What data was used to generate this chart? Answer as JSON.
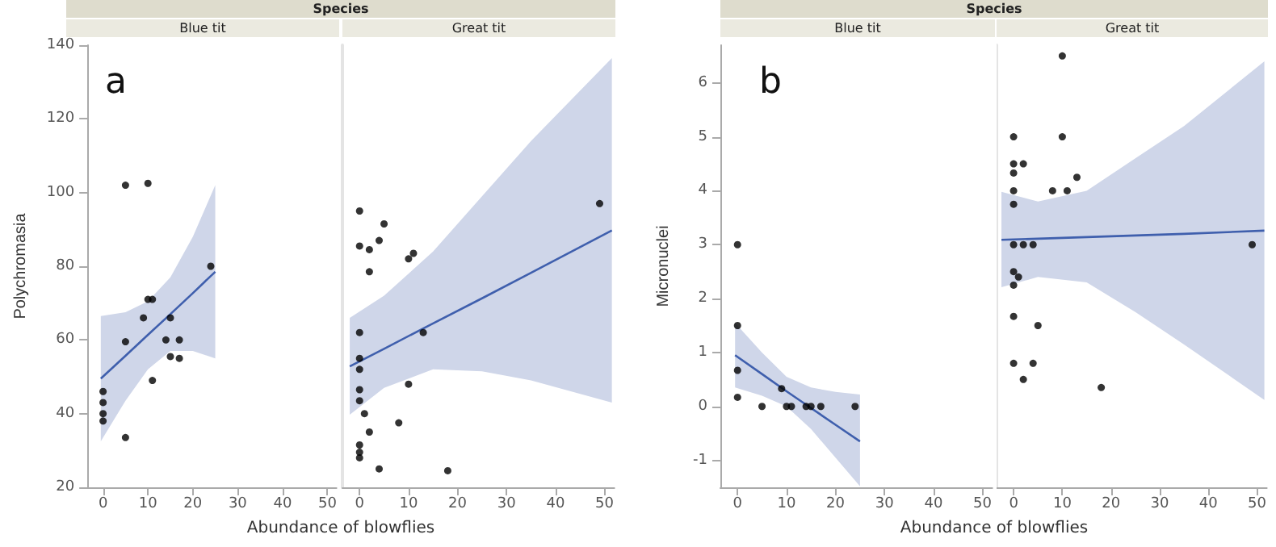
{
  "chart_data": [
    {
      "type": "scatter",
      "title": "Blue tit",
      "ylabel": "Polychromasia",
      "xlabel": "Abundance of blowflies",
      "annotations": [
        "Species",
        "a"
      ],
      "xlim": [
        -3.5,
        52
      ],
      "xticks": [
        0,
        10,
        20,
        30,
        40,
        50
      ],
      "ylim": [
        20,
        140
      ],
      "yticks": [
        20,
        40,
        60,
        80,
        100,
        120,
        140
      ],
      "series": [
        {
          "type": "scatter",
          "color": "#000000",
          "x": [
            0,
            0,
            0,
            0,
            5,
            5,
            5,
            10,
            9,
            10,
            11,
            11,
            14,
            15,
            15,
            17,
            17,
            24
          ],
          "values": [
            46,
            43,
            40,
            38,
            33.5,
            102,
            59.5,
            102.5,
            66,
            71,
            71,
            49,
            60,
            66,
            55.5,
            60,
            55,
            80
          ]
        },
        {
          "type": "line",
          "color": "#3f5fad",
          "x": [
            -0.5,
            5,
            10,
            15,
            20,
            25
          ],
          "values": [
            49.5,
            55.7,
            61.4,
            67,
            72.7,
            78.5
          ],
          "lower": [
            32.5,
            43.5,
            52,
            57,
            57,
            55
          ],
          "upper": [
            66.5,
            67.5,
            70.5,
            77,
            88,
            102
          ]
        }
      ]
    },
    {
      "type": "scatter",
      "title": "Great tit",
      "tick_labels": "x",
      "xlim": [
        -3.5,
        52
      ],
      "xticks": [
        0,
        10,
        20,
        30,
        40,
        50
      ],
      "ylim": [
        20,
        140
      ],
      "yticks": [
        20,
        40,
        60,
        80,
        100,
        120,
        140
      ],
      "series": [
        {
          "type": "scatter",
          "color": "#000000",
          "x": [
            0,
            5,
            4,
            0,
            2,
            10,
            11,
            2,
            49,
            0,
            13,
            0,
            0,
            10,
            0,
            0,
            1,
            8,
            2,
            0,
            0,
            0,
            4,
            18
          ],
          "values": [
            95,
            91.5,
            87,
            85.5,
            84.5,
            82,
            83.5,
            78.5,
            97,
            62,
            62,
            55,
            52,
            48,
            46.5,
            43.5,
            40,
            37.5,
            35,
            31.5,
            29.5,
            28,
            25,
            24.5
          ]
        },
        {
          "type": "line",
          "color": "#3f5fad",
          "x": [
            -2,
            5,
            15,
            25,
            35,
            51.5
          ],
          "values": [
            52.8,
            57.6,
            64.5,
            71.3,
            78.2,
            89.7
          ],
          "lower": [
            39.7,
            47,
            52,
            51.5,
            49,
            43
          ],
          "upper": [
            66,
            72,
            84,
            99,
            114,
            136.5
          ]
        }
      ]
    },
    {
      "type": "scatter",
      "title": "Blue tit",
      "ylabel": "Micronuclei",
      "xlabel": "Abundance of blowflies",
      "annotations": [
        "Species",
        "b"
      ],
      "xlim": [
        -3.5,
        52
      ],
      "xticks": [
        0,
        10,
        20,
        30,
        40,
        50
      ],
      "ylim": [
        -1.5,
        6.7
      ],
      "yticks": [
        -1,
        0,
        1,
        2,
        3,
        4,
        5,
        6
      ],
      "series": [
        {
          "type": "scatter",
          "color": "#000000",
          "x": [
            0,
            0,
            0,
            0,
            5,
            9,
            10,
            11,
            14,
            15,
            17,
            24
          ],
          "values": [
            3,
            1.5,
            0.67,
            0.17,
            0,
            0.33,
            0,
            0,
            0,
            0,
            0,
            0
          ]
        },
        {
          "type": "line",
          "color": "#3f5fad",
          "x": [
            -0.5,
            5,
            10,
            15,
            20,
            25
          ],
          "values": [
            0.95,
            0.6,
            0.28,
            -0.03,
            -0.34,
            -0.65
          ],
          "lower": [
            0.35,
            0.2,
            0,
            -0.42,
            -0.95,
            -1.48
          ],
          "upper": [
            1.55,
            1,
            0.55,
            0.35,
            0.27,
            0.22
          ]
        }
      ]
    },
    {
      "type": "scatter",
      "title": "Great tit",
      "tick_labels": "x",
      "xlim": [
        -3.5,
        52
      ],
      "xticks": [
        0,
        10,
        20,
        30,
        40,
        50
      ],
      "ylim": [
        -1.5,
        6.7
      ],
      "yticks": [
        -1,
        0,
        1,
        2,
        3,
        4,
        5,
        6
      ],
      "series": [
        {
          "type": "scatter",
          "color": "#000000",
          "x": [
            10,
            0,
            10,
            0,
            2,
            0,
            13,
            0,
            8,
            11,
            0,
            0,
            2,
            4,
            49,
            0,
            1,
            0,
            0,
            5,
            0,
            4,
            2,
            18
          ],
          "values": [
            6.5,
            5,
            5,
            4.5,
            4.5,
            4.33,
            4.25,
            4,
            4,
            4,
            3.75,
            3,
            3,
            3,
            3,
            2.5,
            2.4,
            2.25,
            1.67,
            1.5,
            0.8,
            0.8,
            0.5,
            0.35
          ]
        },
        {
          "type": "line",
          "color": "#3f5fad",
          "x": [
            -2.5,
            5,
            15,
            25,
            35,
            51.5
          ],
          "values": [
            3.09,
            3.11,
            3.14,
            3.17,
            3.2,
            3.26
          ],
          "lower": [
            2.21,
            2.4,
            2.3,
            1.75,
            1.15,
            0.12
          ],
          "upper": [
            3.98,
            3.8,
            4,
            4.6,
            5.2,
            6.4
          ]
        }
      ]
    }
  ]
}
